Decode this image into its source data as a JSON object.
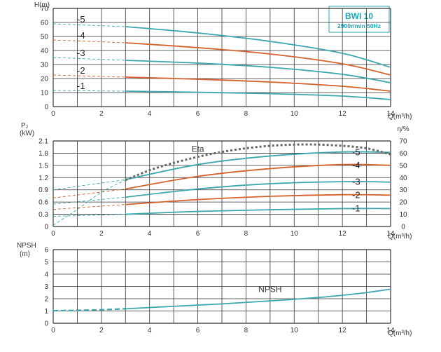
{
  "colors": {
    "teal": "#3aa6ad",
    "orange": "#d4612b",
    "eta_dots": "#666666",
    "grid": "#333333",
    "badge": "#1ea5b5"
  },
  "badge": {
    "title": "BWI 10",
    "subtitle": "2900r/min 50Hz"
  },
  "chart_data": [
    {
      "type": "line",
      "panel": "head",
      "ylabel": "H(m)",
      "xlabel": "Q(m³/h)",
      "xlim": [
        0,
        14
      ],
      "ylim": [
        0,
        70
      ],
      "xticks": [
        "0",
        "2",
        "4",
        "6",
        "8",
        "10",
        "12",
        "14"
      ],
      "yticks": [
        "0",
        "10",
        "20",
        "30",
        "40",
        "50",
        "60",
        "70"
      ],
      "grid": true,
      "operating_range_start_q": 3,
      "series": [
        {
          "name": "-5",
          "color": "teal",
          "x": [
            0,
            3,
            6,
            9,
            12,
            14
          ],
          "y": [
            59,
            57,
            52.5,
            46.5,
            38,
            28
          ]
        },
        {
          "name": "-4",
          "color": "orange",
          "x": [
            0,
            3,
            6,
            9,
            12,
            14
          ],
          "y": [
            47.5,
            45.5,
            42,
            37.5,
            30.5,
            22.5
          ]
        },
        {
          "name": "-3",
          "color": "teal",
          "x": [
            0,
            3,
            6,
            9,
            12,
            14
          ],
          "y": [
            35,
            33,
            31,
            28,
            23,
            17
          ]
        },
        {
          "name": "-2",
          "color": "orange",
          "x": [
            0,
            3,
            6,
            9,
            12,
            14
          ],
          "y": [
            22.5,
            21,
            19.5,
            17.5,
            14.5,
            11
          ]
        },
        {
          "name": "-1",
          "color": "teal",
          "x": [
            0,
            3,
            6,
            9,
            12,
            14
          ],
          "y": [
            11.5,
            11,
            10.2,
            9.2,
            7.5,
            5
          ]
        }
      ]
    },
    {
      "type": "line",
      "panel": "power_efficiency",
      "ylabel": "P₂ (kW)",
      "y2label": "η/%",
      "xlabel": "Q(m³/h)",
      "xlim": [
        0,
        14
      ],
      "ylim": [
        0,
        2.1
      ],
      "y2lim": [
        0,
        70
      ],
      "xticks": [
        "0",
        "2",
        "4",
        "6",
        "8",
        "10",
        "12",
        "14"
      ],
      "yticks": [
        "0",
        "0.3",
        "0.6",
        "0.9",
        "1.2",
        "1.5",
        "1.8",
        "2.1"
      ],
      "y2ticks": [
        "0",
        "10",
        "20",
        "30",
        "40",
        "50",
        "60",
        "70"
      ],
      "grid": true,
      "operating_range_start_q": 3,
      "series": [
        {
          "name": "-5",
          "color": "teal",
          "x": [
            0,
            3,
            6,
            9,
            12,
            14
          ],
          "y": [
            0.9,
            1.15,
            1.52,
            1.73,
            1.83,
            1.82
          ]
        },
        {
          "name": "-4",
          "color": "orange",
          "x": [
            0,
            3,
            6,
            9,
            12,
            14
          ],
          "y": [
            0.7,
            0.92,
            1.23,
            1.42,
            1.52,
            1.5
          ]
        },
        {
          "name": "-3",
          "color": "teal",
          "x": [
            0,
            3,
            6,
            9,
            12,
            14
          ],
          "y": [
            0.55,
            0.72,
            0.92,
            1.05,
            1.1,
            1.09
          ]
        },
        {
          "name": "-2",
          "color": "orange",
          "x": [
            0,
            3,
            6,
            9,
            12,
            14
          ],
          "y": [
            0.42,
            0.54,
            0.66,
            0.74,
            0.78,
            0.77
          ]
        },
        {
          "name": "-1",
          "color": "teal",
          "x": [
            0,
            3,
            6,
            9,
            12,
            14
          ],
          "y": [
            0.25,
            0.3,
            0.37,
            0.41,
            0.44,
            0.44
          ]
        }
      ],
      "eta": {
        "name": "Eta",
        "x": [
          0,
          1,
          2,
          3,
          4,
          5,
          6,
          7,
          8,
          9,
          10,
          11,
          12,
          13,
          14
        ],
        "y": [
          1,
          14,
          28,
          38,
          46,
          52,
          57,
          61,
          64,
          66,
          67,
          67,
          66,
          64,
          59
        ]
      }
    },
    {
      "type": "line",
      "panel": "npsh",
      "ylabel": "NPSH (m)",
      "xlabel": "Q(m³/h)",
      "xlim": [
        0,
        14
      ],
      "ylim": [
        0,
        6
      ],
      "xticks": [
        "0",
        "2",
        "4",
        "6",
        "8",
        "10",
        "12",
        "14"
      ],
      "yticks": [
        "0",
        "1",
        "2",
        "3",
        "4",
        "5",
        "6"
      ],
      "grid": true,
      "operating_range_start_q": 3,
      "series": [
        {
          "name": "NPSH",
          "color": "teal",
          "x": [
            0,
            1,
            2,
            3,
            4,
            5,
            6,
            7,
            8,
            9,
            10,
            11,
            12,
            13,
            14
          ],
          "y": [
            1.02,
            1.05,
            1.1,
            1.18,
            1.28,
            1.38,
            1.48,
            1.58,
            1.7,
            1.82,
            1.95,
            2.1,
            2.28,
            2.5,
            2.78
          ]
        }
      ]
    }
  ]
}
